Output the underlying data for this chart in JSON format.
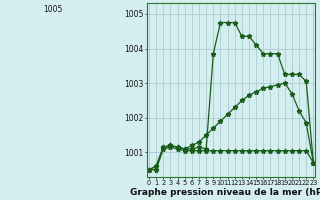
{
  "title": "Graphe pression niveau de la mer (hPa)",
  "hours": [
    0,
    1,
    2,
    3,
    4,
    5,
    6,
    7,
    8,
    9,
    10,
    11,
    12,
    13,
    14,
    15,
    16,
    17,
    18,
    19,
    20,
    21,
    22,
    23
  ],
  "line1": [
    1000.5,
    1000.6,
    1001.15,
    1001.2,
    1001.15,
    1001.1,
    1001.1,
    1001.15,
    1001.1,
    1003.85,
    1004.75,
    1004.75,
    1004.75,
    1004.35,
    1004.35,
    1004.1,
    1003.85,
    1003.85,
    1003.85,
    1003.25,
    1003.25,
    1003.25,
    1003.05,
    1000.7
  ],
  "line2": [
    1000.5,
    1000.6,
    1001.15,
    1001.2,
    1001.15,
    1001.1,
    1001.2,
    1001.3,
    1001.5,
    1001.7,
    1001.9,
    1002.1,
    1002.3,
    1002.5,
    1002.65,
    1002.75,
    1002.85,
    1002.9,
    1002.95,
    1003.0,
    1002.7,
    1002.2,
    1001.85,
    1000.7
  ],
  "line3": [
    1000.5,
    1000.5,
    1001.1,
    1001.15,
    1001.1,
    1001.05,
    1001.05,
    1001.05,
    1001.05,
    1001.05,
    1001.05,
    1001.05,
    1001.05,
    1001.05,
    1001.05,
    1001.05,
    1001.05,
    1001.05,
    1001.05,
    1001.05,
    1001.05,
    1001.05,
    1001.05,
    1000.7
  ],
  "line_color": "#1a5c1a",
  "bg_color": "#d4eef0",
  "grid_color": "#aacdd4",
  "ylim_min": 1000.3,
  "ylim_max": 1005.3,
  "yticks": [
    1001,
    1002,
    1003,
    1004,
    1005
  ],
  "ytick_top": "1005",
  "figsize": [
    3.2,
    2.0
  ],
  "dpi": 100
}
